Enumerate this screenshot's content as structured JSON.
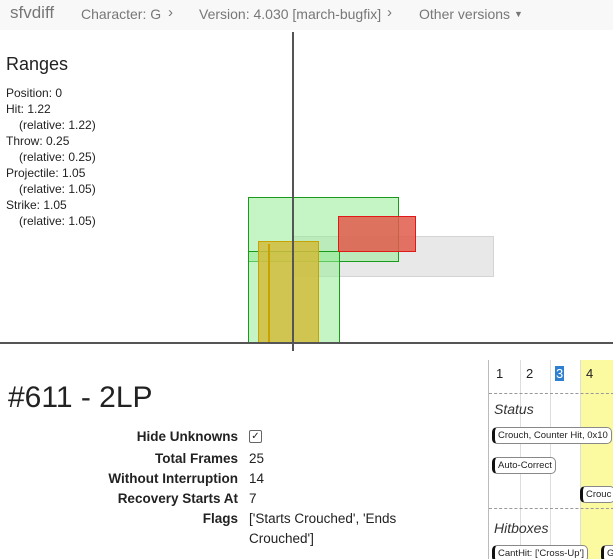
{
  "nav": {
    "brand": "sfvdiff",
    "character": "Character: G",
    "version": "Version: 4.030 [march-bugfix]",
    "other_versions": "Other versions"
  },
  "ranges": {
    "title": "Ranges",
    "position": "Position: 0",
    "hit": "Hit: 1.22",
    "hit_relative": "(relative: 1.22)",
    "throw": "Throw: 0.25",
    "throw_relative": "(relative: 0.25)",
    "projectile": "Projectile: 1.05",
    "projectile_relative": "(relative: 1.05)",
    "strike": "Strike: 1.05",
    "strike_relative": "(relative: 1.05)"
  },
  "boxes": {
    "hurtbox_color": "#c8f5c8",
    "hurtbox_border": "#1a9a1a",
    "hitbox_color": "#e06a5a",
    "hitbox_border": "#e01818",
    "pushbox_color": "#d4c24a",
    "pushbox_border": "#c8a200",
    "range_color": "#e8e8e8"
  },
  "move": {
    "title": "#611 - 2LP",
    "hide_unknowns_label": "Hide Unknowns",
    "hide_unknowns_checked": true,
    "total_frames_label": "Total Frames",
    "total_frames": "25",
    "without_interruption_label": "Without Interruption",
    "without_interruption": "14",
    "recovery_starts_label": "Recovery Starts At",
    "recovery_starts": "7",
    "flags_label": "Flags",
    "flags_line1": "['Starts Crouched', 'Ends",
    "flags_line2": "Crouched']"
  },
  "timeline": {
    "frames": [
      "1",
      "2",
      "3",
      "4"
    ],
    "selected_frame": "3",
    "status_label": "Status",
    "status_pill_1": "Crouch, Counter Hit, 0x10",
    "status_pill_2": "Auto-Correct",
    "status_pill_3": "Crouc",
    "hitboxes_label": "Hitboxes",
    "hitbox_pill_1": "CantHit: ['Cross-Up']",
    "hitbox_pill_2": "Gro",
    "highlight_color": "#fbfaa0"
  }
}
